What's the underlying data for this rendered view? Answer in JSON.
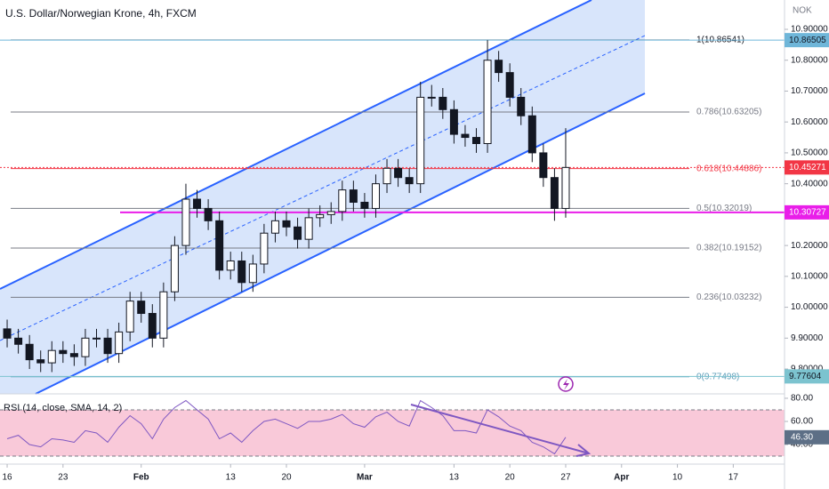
{
  "chart_data": {
    "type": "candlestick",
    "title": "U.S. Dollar/Norwegian Krone, 4h, FXCM",
    "currency": "NOK",
    "x": [
      0,
      1,
      2,
      3,
      4,
      5,
      6,
      7,
      8,
      9,
      10,
      11,
      12,
      13,
      14,
      15,
      16,
      17,
      18,
      19,
      20,
      21,
      22,
      23,
      24,
      25,
      26,
      27,
      28,
      29,
      30,
      31,
      32,
      33,
      34,
      35,
      36,
      37,
      38,
      39,
      40,
      41,
      42,
      43,
      44,
      45,
      46,
      47,
      48,
      49,
      50
    ],
    "open": [
      9.93,
      9.9,
      9.88,
      9.83,
      9.82,
      9.86,
      9.85,
      9.84,
      9.9,
      9.9,
      9.85,
      9.92,
      10.02,
      9.98,
      9.9,
      10.05,
      10.2,
      10.35,
      10.32,
      10.28,
      10.12,
      10.15,
      10.08,
      10.14,
      10.24,
      10.28,
      10.26,
      10.22,
      10.29,
      10.3,
      10.31,
      10.38,
      10.34,
      10.32,
      10.4,
      10.45,
      10.42,
      10.4,
      10.68,
      10.68,
      10.64,
      10.56,
      10.55,
      10.53,
      10.8,
      10.76,
      10.68,
      10.62,
      10.5,
      10.42,
      10.32
    ],
    "high": [
      9.96,
      9.93,
      9.91,
      9.86,
      9.89,
      9.89,
      9.88,
      9.93,
      9.93,
      9.93,
      9.95,
      10.05,
      10.05,
      10.01,
      10.08,
      10.23,
      10.4,
      10.38,
      10.35,
      10.31,
      10.18,
      10.18,
      10.17,
      10.27,
      10.31,
      10.31,
      10.29,
      10.32,
      10.33,
      10.34,
      10.41,
      10.41,
      10.37,
      10.43,
      10.48,
      10.48,
      10.45,
      10.73,
      10.72,
      10.71,
      10.67,
      10.59,
      10.58,
      10.865,
      10.83,
      10.79,
      10.71,
      10.65,
      10.53,
      10.45,
      10.58
    ],
    "low": [
      9.87,
      9.85,
      9.8,
      9.79,
      9.79,
      9.82,
      9.81,
      9.81,
      9.87,
      9.82,
      9.82,
      9.89,
      9.95,
      9.87,
      9.87,
      10.02,
      10.17,
      10.29,
      10.25,
      10.09,
      10.09,
      10.05,
      10.05,
      10.11,
      10.21,
      10.23,
      10.19,
      10.19,
      10.26,
      10.27,
      10.28,
      10.31,
      10.29,
      10.29,
      10.37,
      10.39,
      10.37,
      10.37,
      10.65,
      10.61,
      10.53,
      10.52,
      10.5,
      10.5,
      10.73,
      10.65,
      10.59,
      10.47,
      10.39,
      10.28,
      10.29
    ],
    "close": [
      9.9,
      9.88,
      9.83,
      9.82,
      9.86,
      9.85,
      9.84,
      9.9,
      9.9,
      9.85,
      9.92,
      10.02,
      9.98,
      9.9,
      10.05,
      10.2,
      10.35,
      10.32,
      10.28,
      10.12,
      10.15,
      10.08,
      10.14,
      10.24,
      10.28,
      10.26,
      10.22,
      10.29,
      10.3,
      10.31,
      10.38,
      10.34,
      10.32,
      10.4,
      10.45,
      10.42,
      10.4,
      10.68,
      10.68,
      10.64,
      10.56,
      10.55,
      10.53,
      10.8,
      10.76,
      10.68,
      10.62,
      10.5,
      10.42,
      10.32,
      10.4527
    ],
    "up_color": "#ffffff",
    "down_color": "#131722",
    "xlim": [
      -0.64,
      69.59
    ],
    "xticks": [
      {
        "value": 0,
        "label": "16"
      },
      {
        "value": 5,
        "label": "23"
      },
      {
        "value": 12,
        "label": "Feb"
      },
      {
        "value": 20,
        "label": "13"
      },
      {
        "value": 25,
        "label": "20"
      },
      {
        "value": 32,
        "label": "Mar"
      },
      {
        "value": 40,
        "label": "13"
      },
      {
        "value": 45,
        "label": "20"
      },
      {
        "value": 50,
        "label": "27"
      },
      {
        "value": 55,
        "label": "Apr"
      },
      {
        "value": 60,
        "label": "10"
      },
      {
        "value": 65,
        "label": "17"
      }
    ],
    "ylim": [
      9.7195,
      10.995
    ],
    "yticks": [
      {
        "value": 9.8,
        "label": "9.80000"
      },
      {
        "value": 9.9,
        "label": "9.90000"
      },
      {
        "value": 10.0,
        "label": "10.00000"
      },
      {
        "value": 10.1,
        "label": "10.10000"
      },
      {
        "value": 10.2,
        "label": "10.20000"
      },
      {
        "value": 10.4,
        "label": "10.40000"
      },
      {
        "value": 10.5,
        "label": "10.50000"
      },
      {
        "value": 10.6,
        "label": "10.60000"
      },
      {
        "value": 10.7,
        "label": "10.70000"
      },
      {
        "value": 10.8,
        "label": "10.80000"
      },
      {
        "value": 10.9,
        "label": "10.90000"
      }
    ],
    "fib_levels": [
      {
        "label": "1(10.86541)",
        "value": 10.86541,
        "color": "#131722"
      },
      {
        "label": "0.786(10.63205)",
        "value": 10.63205,
        "color": "#787b86"
      },
      {
        "label": "0.618(10.44886)",
        "value": 10.44886,
        "color": "#f23645"
      },
      {
        "label": "0.5(10.32019)",
        "value": 10.32019,
        "color": "#787b86"
      },
      {
        "label": "0.382(10.19152)",
        "value": 10.19152,
        "color": "#787b86"
      },
      {
        "label": "0.236(10.03232)",
        "value": 10.03232,
        "color": "#787b86"
      },
      {
        "label": "0(9.77498)",
        "value": 9.77498,
        "color": "#5b9cb8"
      }
    ],
    "price_lines": [
      {
        "value": 10.86505,
        "color": "#6fb6d9"
      },
      {
        "value": 10.45271,
        "color": "#f23645"
      },
      {
        "value": 10.30727,
        "color": "#e91ee9"
      },
      {
        "value": 9.77604,
        "color": "#7cc3cf"
      }
    ],
    "rsi": {
      "label": "RSI (14, close, SMA, 14, 2)",
      "color": "#7e57c2",
      "values": [
        45,
        48,
        40,
        38,
        45,
        44,
        42,
        52,
        50,
        42,
        55,
        65,
        58,
        45,
        62,
        72,
        78,
        70,
        62,
        45,
        50,
        42,
        52,
        60,
        62,
        58,
        54,
        60,
        60,
        62,
        66,
        58,
        55,
        64,
        68,
        60,
        56,
        78,
        72,
        65,
        52,
        52,
        50,
        70,
        64,
        56,
        52,
        42,
        38,
        32,
        46.3
      ],
      "last_value_label": "46.30",
      "band": [
        30,
        70
      ],
      "ylim": [
        26.2,
        83.8
      ],
      "yticks": [
        {
          "value": 40,
          "label": "40.00"
        },
        {
          "value": 60,
          "label": "60.00"
        },
        {
          "value": 80,
          "label": "80.00"
        }
      ]
    }
  }
}
